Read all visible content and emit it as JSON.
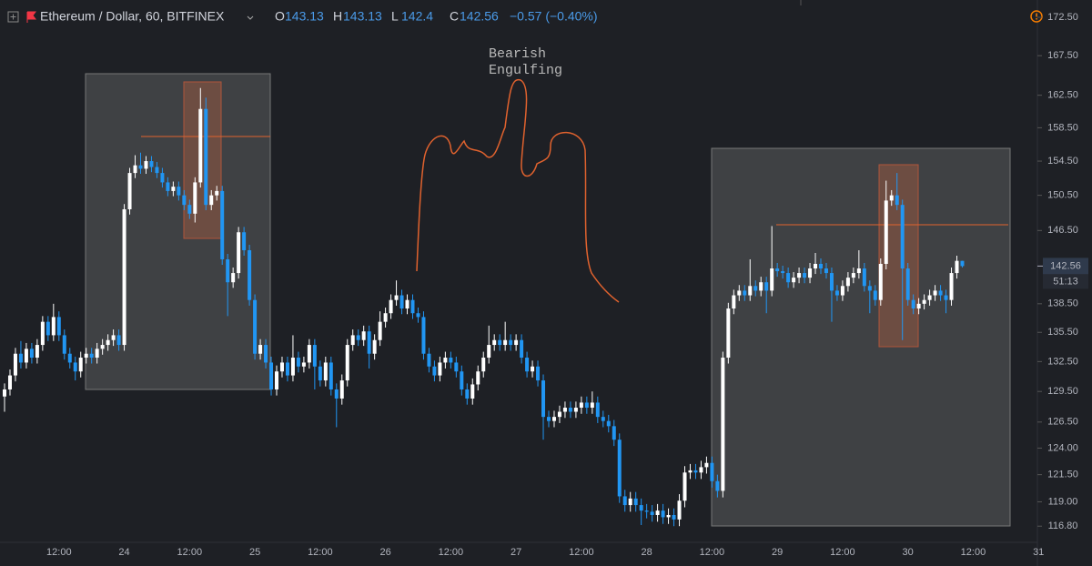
{
  "chart_data": {
    "type": "candlestick",
    "title": "Ethereum / Dollar, 60, BITFINEX",
    "ohlc_labels": [
      "O",
      "H",
      "L",
      "C"
    ],
    "change_label": "−0.57 (−0.40%)",
    "countdown": "51:13",
    "annotation": [
      "Bearish",
      "Engulfing"
    ],
    "log_scale": true,
    "grid": false,
    "up_color": "#ffffff",
    "down_color": "#2196f3",
    "ylim": [
      115.2,
      174.8
    ],
    "yticks": [
      {
        "value": 172.5,
        "label": "172.50"
      },
      {
        "value": 167.5,
        "label": "167.50"
      },
      {
        "value": 162.5,
        "label": "162.50"
      },
      {
        "value": 158.5,
        "label": "158.50"
      },
      {
        "value": 154.5,
        "label": "154.50"
      },
      {
        "value": 150.5,
        "label": "150.50"
      },
      {
        "value": 146.5,
        "label": "146.50"
      },
      {
        "value": 138.5,
        "label": "138.50"
      },
      {
        "value": 135.5,
        "label": "135.50"
      },
      {
        "value": 132.5,
        "label": "132.50"
      },
      {
        "value": 129.5,
        "label": "129.50"
      },
      {
        "value": 126.5,
        "label": "126.50"
      },
      {
        "value": 124,
        "label": "124.00"
      },
      {
        "value": 121.5,
        "label": "121.50"
      },
      {
        "value": 119,
        "label": "119.00"
      },
      {
        "value": 116.8,
        "label": "116.80"
      }
    ],
    "categories": [
      null,
      null,
      null,
      null,
      null,
      null,
      null,
      null,
      null,
      null,
      "12:00",
      null,
      null,
      null,
      null,
      null,
      null,
      null,
      null,
      null,
      null,
      null,
      "24",
      null,
      null,
      null,
      null,
      null,
      null,
      null,
      null,
      null,
      null,
      null,
      "12:00",
      null,
      null,
      null,
      null,
      null,
      null,
      null,
      null,
      null,
      null,
      null,
      "25",
      null,
      null,
      null,
      null,
      null,
      null,
      null,
      null,
      null,
      null,
      null,
      "12:00",
      null,
      null,
      null,
      null,
      null,
      null,
      null,
      null,
      null,
      null,
      null,
      "26",
      null,
      null,
      null,
      null,
      null,
      null,
      null,
      null,
      null,
      null,
      null,
      "12:00",
      null,
      null,
      null,
      null,
      null,
      null,
      null,
      null,
      null,
      null,
      null,
      "27",
      null,
      null,
      null,
      null,
      null,
      null,
      null,
      null,
      null,
      null,
      null,
      "12:00",
      null,
      null,
      null,
      null,
      null,
      null,
      null,
      null,
      null,
      null,
      null,
      "28",
      null,
      null,
      null,
      null,
      null,
      null,
      null,
      null,
      null,
      null,
      null,
      "12:00",
      null,
      null,
      null,
      null,
      null,
      null,
      null,
      null,
      null,
      null,
      null,
      "29",
      null,
      null,
      null,
      null,
      null,
      null,
      null,
      null,
      null,
      null,
      null,
      "12:00",
      null,
      null,
      null,
      null,
      null,
      null,
      null,
      null,
      null,
      null,
      null,
      "30",
      null,
      null,
      null,
      null,
      null,
      null,
      null,
      null,
      null,
      null,
      null,
      "12:00",
      null,
      null,
      null,
      null,
      null,
      null,
      null,
      null,
      null,
      null,
      null,
      "31"
    ],
    "open": [
      129.0,
      129.7,
      131.1,
      133.3,
      132.4,
      133.8,
      132.9,
      134.2,
      136.6,
      135.2,
      137.1,
      135.2,
      133.3,
      132.4,
      131.5,
      132.9,
      133.3,
      132.9,
      133.8,
      134.2,
      134.7,
      135.2,
      134.2,
      148.9,
      153.1,
      154.0,
      153.6,
      154.5,
      153.8,
      153.1,
      152.0,
      151.0,
      151.5,
      150.5,
      149.4,
      148.4,
      152.0,
      160.8,
      149.4,
      150.5,
      151.0,
      143.3,
      140.8,
      141.8,
      146.3,
      144.3,
      138.9,
      133.3,
      134.2,
      132.4,
      129.7,
      131.5,
      132.4,
      131.1,
      132.9,
      132.0,
      132.4,
      134.2,
      132.0,
      130.6,
      132.4,
      129.7,
      128.8,
      130.6,
      134.2,
      135.2,
      134.7,
      135.6,
      133.3,
      134.7,
      136.6,
      137.5,
      138.9,
      139.4,
      138.0,
      138.9,
      137.5,
      137.1,
      133.3,
      132.0,
      131.1,
      132.4,
      132.9,
      132.4,
      131.5,
      129.7,
      128.8,
      130.2,
      131.5,
      132.9,
      134.2,
      134.7,
      134.2,
      134.7,
      134.2,
      134.7,
      132.9,
      131.5,
      132.0,
      130.6,
      127.0,
      126.6,
      127.0,
      127.5,
      127.9,
      127.5,
      127.9,
      128.4,
      127.9,
      128.4,
      127.0,
      126.6,
      126.1,
      124.8,
      119.5,
      118.7,
      119.3,
      118.7,
      118.2,
      118.1,
      117.8,
      118.2,
      117.6,
      117.8,
      117.4,
      119.1,
      121.7,
      121.9,
      121.7,
      122.2,
      122.6,
      120.9,
      120.0,
      132.9,
      138.0,
      139.4,
      139.9,
      139.4,
      140.4,
      139.9,
      140.8,
      139.9,
      142.3,
      142.0,
      141.8,
      140.8,
      141.3,
      141.8,
      141.3,
      142.3,
      142.8,
      142.3,
      141.8,
      139.9,
      139.4,
      140.4,
      141.3,
      141.8,
      142.3,
      140.4,
      139.9,
      138.9,
      142.8,
      149.9,
      150.5,
      149.4,
      142.3,
      138.9,
      138.0,
      138.5,
      138.9,
      139.4,
      139.9,
      139.4,
      138.9,
      141.8,
      143.13,
      null,
      null,
      null,
      null,
      null,
      null,
      null,
      null,
      null,
      null,
      null,
      null,
      null,
      null
    ],
    "high": [
      130.3,
      131.7,
      133.9,
      134.6,
      134.4,
      134.4,
      134.8,
      137.2,
      137.2,
      138.5,
      137.7,
      135.8,
      133.9,
      133.0,
      133.5,
      133.9,
      133.9,
      134.4,
      134.8,
      135.3,
      135.8,
      135.8,
      149.5,
      153.7,
      155.2,
      155.5,
      155.1,
      155.1,
      154.4,
      153.7,
      152.6,
      152.1,
      152.1,
      151.1,
      150.0,
      152.6,
      163.4,
      162.2,
      151.1,
      151.6,
      151.6,
      143.9,
      142.4,
      146.9,
      146.9,
      144.9,
      139.5,
      134.8,
      134.8,
      133.0,
      132.1,
      133.0,
      133.0,
      135.2,
      133.5,
      133.0,
      134.8,
      134.8,
      132.6,
      133.0,
      133.0,
      130.3,
      131.2,
      134.8,
      135.8,
      135.8,
      136.2,
      136.2,
      135.3,
      137.7,
      138.1,
      139.5,
      141.0,
      140.0,
      139.5,
      139.5,
      138.1,
      137.7,
      133.9,
      132.6,
      133.0,
      133.5,
      133.5,
      133.0,
      132.1,
      130.3,
      130.8,
      132.1,
      133.5,
      136.2,
      135.3,
      135.3,
      136.6,
      135.3,
      135.3,
      135.3,
      133.5,
      132.6,
      132.6,
      131.2,
      127.6,
      127.6,
      128.1,
      128.5,
      128.5,
      128.5,
      129.0,
      129.0,
      129.5,
      129.0,
      127.6,
      127.2,
      126.7,
      125.4,
      120.1,
      119.9,
      119.9,
      119.3,
      118.8,
      118.7,
      118.8,
      118.8,
      118.4,
      118.4,
      119.7,
      122.3,
      122.5,
      122.5,
      122.8,
      123.2,
      123.2,
      121.5,
      133.5,
      138.6,
      140.0,
      140.5,
      140.5,
      143.3,
      141.0,
      141.4,
      141.4,
      147.0,
      142.9,
      142.6,
      142.4,
      141.9,
      142.4,
      142.4,
      142.9,
      144.0,
      143.4,
      142.9,
      142.4,
      140.5,
      141.0,
      141.9,
      142.4,
      144.3,
      142.9,
      141.0,
      140.5,
      143.4,
      152.2,
      151.1,
      153.1,
      150.0,
      142.9,
      139.5,
      139.1,
      139.5,
      140.0,
      140.5,
      140.5,
      140.0,
      142.4,
      143.7,
      143.13,
      null,
      null,
      null,
      null,
      null,
      null,
      null,
      null,
      null,
      null,
      null,
      null,
      null,
      null
    ],
    "low": [
      127.5,
      129.1,
      130.5,
      131.8,
      131.8,
      132.3,
      132.3,
      133.6,
      134.6,
      134.6,
      134.6,
      132.7,
      131.8,
      130.6,
      130.9,
      132.3,
      132.3,
      132.3,
      133.2,
      133.6,
      134.1,
      133.6,
      133.6,
      148.3,
      152.5,
      153.0,
      153.0,
      153.2,
      152.5,
      151.4,
      150.4,
      150.4,
      149.9,
      148.8,
      147.8,
      147.4,
      151.4,
      148.8,
      148.8,
      149.9,
      142.7,
      137.2,
      140.2,
      141.2,
      143.7,
      138.3,
      132.7,
      132.7,
      131.8,
      129.1,
      129.1,
      130.9,
      130.5,
      130.5,
      131.4,
      131.4,
      131.8,
      129.7,
      130.0,
      130.0,
      129.1,
      126.0,
      128.2,
      130.0,
      133.6,
      134.1,
      134.1,
      131.8,
      132.7,
      134.1,
      136.0,
      136.9,
      138.3,
      137.4,
      137.4,
      136.9,
      136.5,
      132.7,
      131.4,
      130.5,
      130.5,
      131.8,
      131.8,
      130.9,
      129.1,
      128.2,
      128.2,
      129.6,
      130.9,
      132.3,
      133.6,
      133.6,
      133.6,
      133.6,
      133.6,
      132.3,
      130.9,
      130.9,
      130.0,
      124.8,
      126.0,
      126.0,
      126.4,
      126.9,
      126.9,
      126.9,
      127.3,
      127.3,
      127.3,
      126.4,
      126.0,
      125.5,
      124.2,
      118.9,
      118.1,
      118.1,
      118.1,
      116.9,
      117.5,
      117.2,
      117.2,
      117.0,
      117.0,
      116.8,
      116.8,
      118.5,
      121.1,
      121.1,
      121.1,
      121.6,
      120.3,
      119.4,
      119.4,
      132.3,
      137.4,
      138.8,
      138.8,
      138.8,
      139.3,
      139.3,
      137.5,
      139.3,
      141.4,
      141.2,
      140.2,
      140.2,
      140.7,
      140.7,
      140.7,
      141.7,
      141.7,
      141.2,
      136.6,
      138.8,
      138.8,
      139.8,
      140.7,
      141.2,
      139.8,
      137.5,
      138.3,
      138.3,
      142.2,
      149.3,
      148.8,
      134.7,
      138.3,
      137.4,
      137.4,
      137.9,
      138.3,
      138.8,
      138.8,
      137.5,
      138.3,
      141.2,
      142.4,
      null,
      null,
      null,
      null,
      null,
      null,
      null,
      null,
      null,
      null,
      null,
      null,
      null,
      null
    ],
    "close": [
      129.7,
      131.1,
      133.3,
      132.4,
      133.8,
      132.9,
      134.2,
      136.6,
      135.2,
      137.1,
      135.2,
      133.3,
      132.4,
      131.5,
      132.9,
      133.3,
      132.9,
      133.8,
      134.2,
      134.7,
      135.2,
      134.2,
      148.9,
      153.1,
      154.0,
      153.6,
      154.5,
      153.8,
      153.1,
      152.0,
      151.0,
      151.5,
      150.5,
      149.4,
      148.4,
      152.0,
      160.8,
      149.4,
      150.5,
      151.0,
      143.3,
      140.8,
      141.8,
      146.3,
      144.3,
      138.9,
      133.3,
      134.2,
      132.4,
      129.7,
      131.5,
      132.4,
      131.1,
      132.9,
      132.0,
      132.4,
      134.2,
      132.0,
      130.6,
      132.4,
      129.7,
      128.8,
      130.6,
      134.2,
      135.2,
      134.7,
      135.6,
      133.3,
      134.7,
      136.6,
      137.5,
      138.9,
      139.4,
      138.0,
      138.9,
      137.5,
      137.1,
      133.3,
      132.0,
      131.1,
      132.4,
      132.9,
      132.4,
      131.5,
      129.7,
      128.8,
      130.2,
      131.5,
      132.9,
      134.2,
      134.7,
      134.2,
      134.7,
      134.2,
      134.7,
      132.9,
      131.5,
      132.0,
      130.6,
      127.0,
      126.6,
      127.0,
      127.5,
      127.9,
      127.5,
      127.9,
      128.4,
      127.9,
      128.4,
      127.0,
      126.6,
      126.1,
      124.8,
      119.5,
      118.7,
      119.3,
      118.7,
      118.2,
      118.1,
      117.8,
      118.2,
      117.6,
      117.8,
      117.4,
      119.1,
      121.7,
      121.9,
      121.7,
      122.2,
      122.6,
      120.9,
      120.0,
      132.9,
      138.0,
      139.4,
      139.9,
      139.4,
      140.4,
      139.9,
      140.8,
      139.9,
      142.3,
      142.0,
      141.8,
      140.8,
      141.3,
      141.8,
      141.3,
      142.3,
      142.8,
      142.3,
      141.8,
      139.9,
      139.4,
      140.4,
      141.3,
      141.8,
      142.3,
      140.4,
      139.9,
      138.9,
      142.8,
      149.9,
      150.5,
      149.4,
      142.3,
      138.9,
      138.0,
      138.5,
      138.9,
      139.4,
      139.9,
      139.4,
      138.9,
      141.8,
      143.13,
      142.56,
      null,
      null,
      null,
      null,
      null,
      null,
      null,
      null,
      null,
      null,
      null,
      null,
      null,
      null
    ]
  }
}
